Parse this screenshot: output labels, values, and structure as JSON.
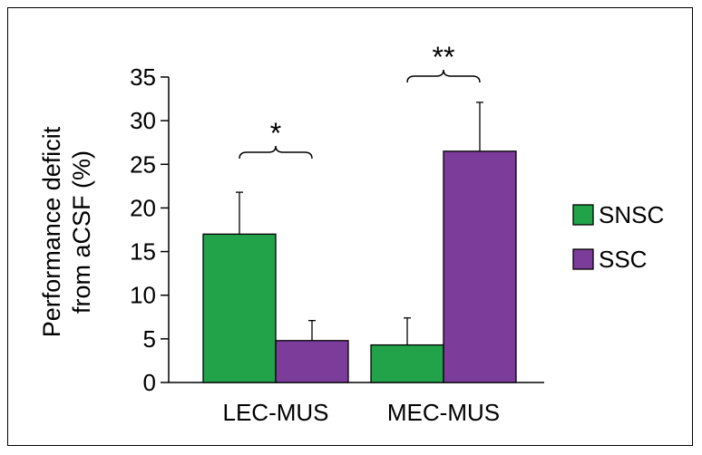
{
  "chart_data": {
    "type": "bar",
    "categories": [
      "LEC-MUS",
      "MEC-MUS"
    ],
    "series": [
      {
        "name": "SNSC",
        "color": "#22a34a",
        "values": [
          17.0,
          4.3
        ],
        "error": [
          4.8,
          3.1
        ]
      },
      {
        "name": "SSC",
        "color": "#7b3c9a",
        "values": [
          4.8,
          26.5
        ],
        "error": [
          2.3,
          5.6
        ]
      }
    ],
    "ylabel_lines": [
      "Performance deficit",
      "from aCSF  (%)"
    ],
    "ylim": [
      0,
      35
    ],
    "yticks": [
      0,
      5,
      10,
      15,
      20,
      25,
      30,
      35
    ],
    "grid": false,
    "legend_position": "right",
    "significance": [
      {
        "category": "LEC-MUS",
        "label": "*"
      },
      {
        "category": "MEC-MUS",
        "label": "**"
      }
    ]
  }
}
